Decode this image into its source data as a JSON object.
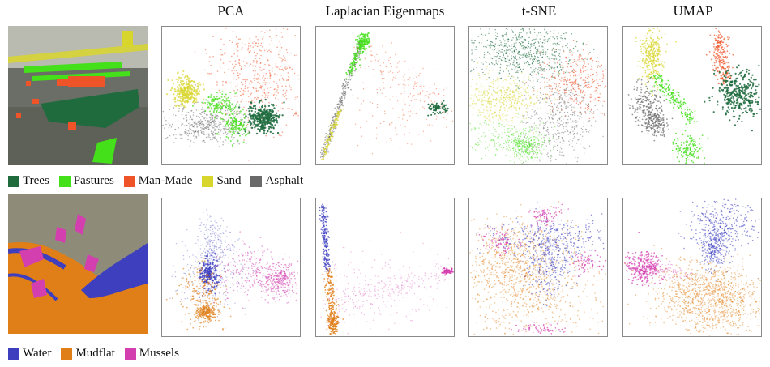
{
  "columns": [
    "PCA",
    "Laplacian Eigenmaps",
    "t-SNE",
    "UMAP"
  ],
  "legend_top": [
    {
      "label": "Trees",
      "color": "#1f6b3e"
    },
    {
      "label": "Pastures",
      "color": "#44e01a"
    },
    {
      "label": "Man-Made",
      "color": "#ef5428"
    },
    {
      "label": "Sand",
      "color": "#d8d62d"
    },
    {
      "label": "Asphalt",
      "color": "#6a6a6a"
    }
  ],
  "legend_bottom": [
    {
      "label": "Water",
      "color": "#3d3fbf"
    },
    {
      "label": "Mudflat",
      "color": "#e07e18"
    },
    {
      "label": "Mussels",
      "color": "#d43fb0"
    }
  ],
  "chart_data": [
    {
      "type": "scatter",
      "row": "urban",
      "series": [
        {
          "name": "Trees",
          "color": "#1f6b3e"
        },
        {
          "name": "Pastures",
          "color": "#44e01a"
        },
        {
          "name": "Man-Made",
          "color": "#ef5428"
        },
        {
          "name": "Sand",
          "color": "#d8d62d"
        },
        {
          "name": "Asphalt",
          "color": "#6a6a6a"
        }
      ],
      "methods": [
        "PCA",
        "Laplacian Eigenmaps",
        "t-SNE",
        "UMAP"
      ],
      "axes": "none"
    },
    {
      "type": "scatter",
      "row": "coastal",
      "series": [
        {
          "name": "Water",
          "color": "#3d3fbf"
        },
        {
          "name": "Mudflat",
          "color": "#e07e18"
        },
        {
          "name": "Mussels",
          "color": "#d43fb0"
        }
      ],
      "methods": [
        "PCA",
        "Laplacian Eigenmaps",
        "t-SNE",
        "UMAP"
      ],
      "axes": "none"
    }
  ]
}
